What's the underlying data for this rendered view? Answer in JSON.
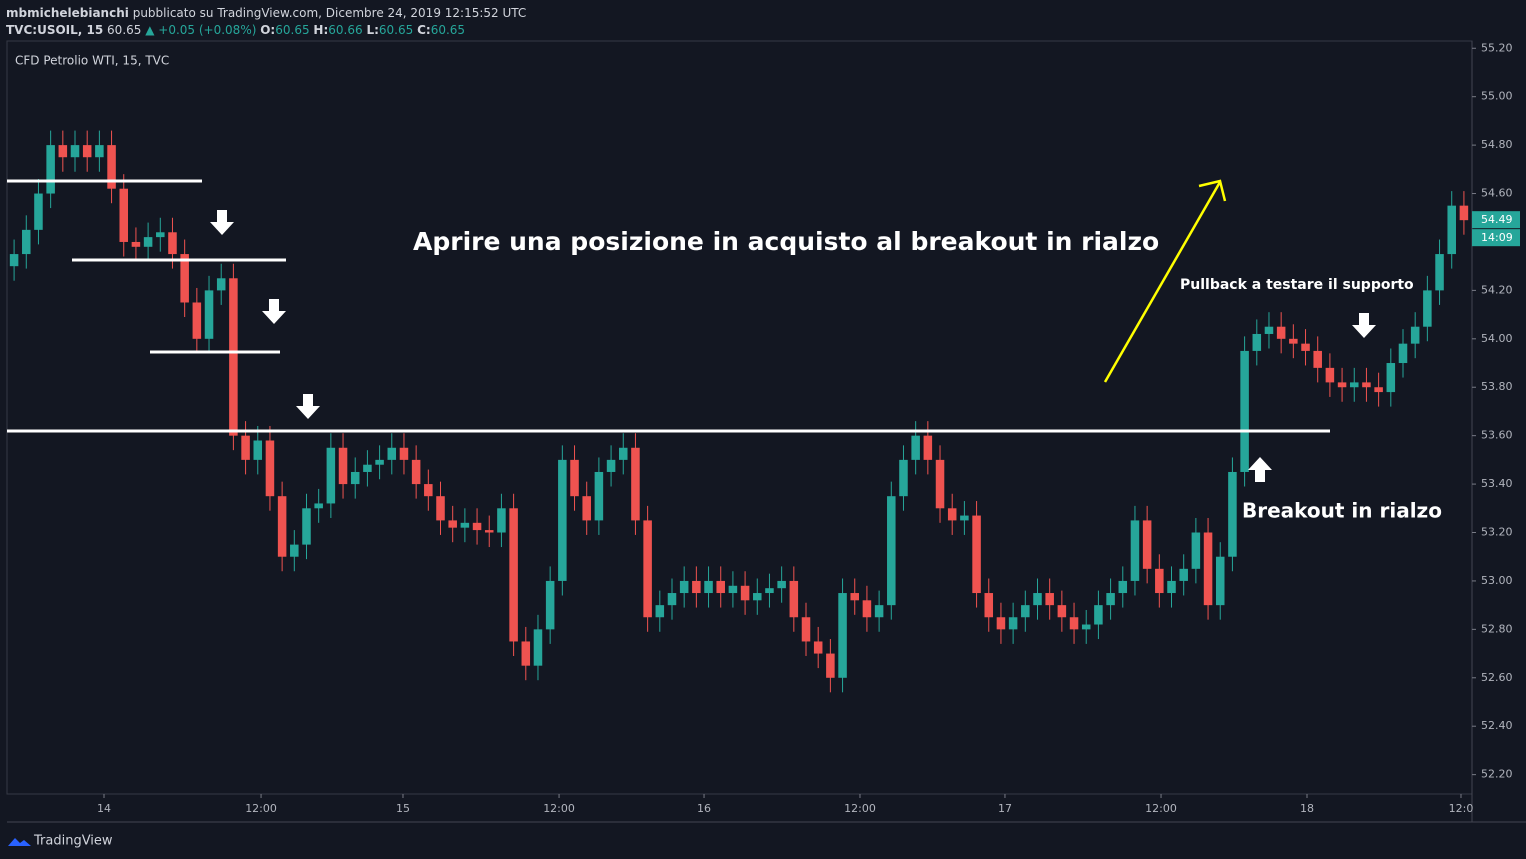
{
  "header": {
    "author": "mbmichelebianchi",
    "published": "pubblicato su TradingView.com, Dicembre 24, 2019 12:15:52 UTC",
    "symbol": "TVC:USOIL, 15",
    "price": "60.65",
    "change": "▲ +0.05 (+0.08%)",
    "o_label": "O:",
    "o": "60.65",
    "h_label": "H:",
    "h": "60.66",
    "l_label": "L:",
    "l": "60.65",
    "c_label": "C:",
    "c": "60.65"
  },
  "footer": {
    "brand": "TradingView"
  },
  "chart_data": {
    "type": "candlestick",
    "title": "CFD Petrolio WTI, 15, TVC",
    "annotations": [
      "Aprire una posizione in acquisto al breakout in rialzo",
      "Pullback a testare il supporto",
      "Breakout in rialzo"
    ],
    "countdown": "14:09",
    "up_color": "#26a69a",
    "down_color": "#ef5350",
    "xlim": [
      -0.5,
      119.5
    ],
    "ylim": [
      52.12,
      55.23
    ],
    "xticks": [
      {
        "value": 7.38,
        "label": "14"
      },
      {
        "value": 20.27,
        "label": "12:00"
      },
      {
        "value": 31.92,
        "label": "15"
      },
      {
        "value": 44.73,
        "label": "12:00"
      },
      {
        "value": 56.63,
        "label": "16"
      },
      {
        "value": 69.43,
        "label": "12:00"
      },
      {
        "value": 81.33,
        "label": "17"
      },
      {
        "value": 94.14,
        "label": "12:00"
      },
      {
        "value": 106.12,
        "label": "18"
      },
      {
        "value": 118.76,
        "label": "12:0"
      }
    ],
    "yticks": [
      {
        "value": 52.2,
        "label": "52.20"
      },
      {
        "value": 52.4,
        "label": "52.40"
      },
      {
        "value": 52.6,
        "label": "52.60"
      },
      {
        "value": 52.8,
        "label": "52.80"
      },
      {
        "value": 53.0,
        "label": "53.00"
      },
      {
        "value": 53.2,
        "label": "53.20"
      },
      {
        "value": 53.4,
        "label": "53.40"
      },
      {
        "value": 53.6,
        "label": "53.60"
      },
      {
        "value": 53.8,
        "label": "53.80"
      },
      {
        "value": 54.0,
        "label": "54.00"
      },
      {
        "value": 54.2,
        "label": "54.20"
      },
      {
        "value": 54.4,
        "label": "54.40"
      },
      {
        "value": 54.6,
        "label": "54.60"
      },
      {
        "value": 54.8,
        "label": "54.80"
      },
      {
        "value": 55.0,
        "label": "55.00"
      },
      {
        "value": 55.2,
        "label": "55.20"
      }
    ],
    "open": [
      54.3,
      54.35,
      54.45,
      54.6,
      54.8,
      54.75,
      54.8,
      54.75,
      54.8,
      54.62,
      54.4,
      54.38,
      54.42,
      54.44,
      54.35,
      54.15,
      54.0,
      54.2,
      54.25,
      53.6,
      53.5,
      53.58,
      53.35,
      53.1,
      53.15,
      53.3,
      53.32,
      53.55,
      53.4,
      53.45,
      53.48,
      53.5,
      53.55,
      53.5,
      53.4,
      53.35,
      53.25,
      53.22,
      53.24,
      53.21,
      53.2,
      53.3,
      52.75,
      52.65,
      52.8,
      53.0,
      53.5,
      53.35,
      53.25,
      53.45,
      53.5,
      53.55,
      53.25,
      52.85,
      52.9,
      52.95,
      53.0,
      52.95,
      53.0,
      52.95,
      52.98,
      52.92,
      52.95,
      52.97,
      53.0,
      52.85,
      52.75,
      52.7,
      52.6,
      52.95,
      52.92,
      52.85,
      52.9,
      53.35,
      53.5,
      53.6,
      53.5,
      53.3,
      53.25,
      53.27,
      52.95,
      52.85,
      52.8,
      52.85,
      52.9,
      52.95,
      52.9,
      52.85,
      52.8,
      52.82,
      52.9,
      52.95,
      53.0,
      53.25,
      53.05,
      52.95,
      53.0,
      53.05,
      53.2,
      52.9,
      53.1,
      53.45,
      53.95,
      54.02,
      54.05,
      54.0,
      53.98,
      53.95,
      53.88,
      53.82,
      53.8,
      53.82,
      53.8,
      53.78,
      53.9,
      53.98,
      54.05,
      54.2,
      54.35,
      54.55
    ],
    "high": [
      54.41,
      54.51,
      54.66,
      54.86,
      54.86,
      54.86,
      54.86,
      54.86,
      54.86,
      54.68,
      54.46,
      54.48,
      54.5,
      54.5,
      54.41,
      54.21,
      54.26,
      54.31,
      54.31,
      53.66,
      53.64,
      53.64,
      53.41,
      53.21,
      53.36,
      53.38,
      53.61,
      53.61,
      53.51,
      53.54,
      53.56,
      53.61,
      53.61,
      53.56,
      53.46,
      53.41,
      53.31,
      53.3,
      53.3,
      53.27,
      53.36,
      53.36,
      52.81,
      52.86,
      53.06,
      53.56,
      53.56,
      53.41,
      53.51,
      53.56,
      53.61,
      53.61,
      53.31,
      52.96,
      53.01,
      53.06,
      53.06,
      53.06,
      53.06,
      53.04,
      53.04,
      53.01,
      53.03,
      53.06,
      53.06,
      52.91,
      52.81,
      52.76,
      53.01,
      53.01,
      52.98,
      52.96,
      53.41,
      53.56,
      53.66,
      53.66,
      53.56,
      53.36,
      53.33,
      53.33,
      53.01,
      52.91,
      52.91,
      52.96,
      53.01,
      53.01,
      52.96,
      52.91,
      52.88,
      52.96,
      53.01,
      53.06,
      53.31,
      53.31,
      53.11,
      53.06,
      53.11,
      53.26,
      53.26,
      53.16,
      53.51,
      54.01,
      54.08,
      54.11,
      54.11,
      54.06,
      54.04,
      54.01,
      53.94,
      53.88,
      53.88,
      53.88,
      53.86,
      53.96,
      54.04,
      54.11,
      54.26,
      54.41,
      54.61,
      54.61
    ],
    "low": [
      54.24,
      54.29,
      54.39,
      54.54,
      54.69,
      54.69,
      54.69,
      54.69,
      54.56,
      54.34,
      54.32,
      54.32,
      54.36,
      54.29,
      54.09,
      53.94,
      53.94,
      54.14,
      53.54,
      53.44,
      53.44,
      53.29,
      53.04,
      53.04,
      53.09,
      53.24,
      53.26,
      53.34,
      53.34,
      53.39,
      53.42,
      53.44,
      53.44,
      53.34,
      53.29,
      53.19,
      53.16,
      53.16,
      53.15,
      53.14,
      53.14,
      52.69,
      52.59,
      52.59,
      52.74,
      52.94,
      53.29,
      53.19,
      53.19,
      53.39,
      53.44,
      53.19,
      52.79,
      52.79,
      52.84,
      52.89,
      52.89,
      52.89,
      52.89,
      52.89,
      52.86,
      52.86,
      52.89,
      52.91,
      52.79,
      52.69,
      52.64,
      52.54,
      52.54,
      52.86,
      52.79,
      52.79,
      52.84,
      53.29,
      53.44,
      53.44,
      53.24,
      53.19,
      53.19,
      52.89,
      52.79,
      52.74,
      52.74,
      52.79,
      52.84,
      52.84,
      52.79,
      52.74,
      52.74,
      52.76,
      52.84,
      52.89,
      52.94,
      52.99,
      52.89,
      52.89,
      52.94,
      52.99,
      52.84,
      52.84,
      53.04,
      53.39,
      53.89,
      53.96,
      53.94,
      53.92,
      53.89,
      53.82,
      53.76,
      53.74,
      53.74,
      53.74,
      53.72,
      53.72,
      53.84,
      53.92,
      53.99,
      54.14,
      54.29,
      54.43
    ],
    "close": [
      54.35,
      54.45,
      54.6,
      54.8,
      54.75,
      54.8,
      54.75,
      54.8,
      54.62,
      54.4,
      54.38,
      54.42,
      54.44,
      54.35,
      54.15,
      54.0,
      54.2,
      54.25,
      53.6,
      53.5,
      53.58,
      53.35,
      53.1,
      53.15,
      53.3,
      53.32,
      53.55,
      53.4,
      53.45,
      53.48,
      53.5,
      53.55,
      53.5,
      53.4,
      53.35,
      53.25,
      53.22,
      53.24,
      53.21,
      53.2,
      53.3,
      52.75,
      52.65,
      52.8,
      53.0,
      53.5,
      53.35,
      53.25,
      53.45,
      53.5,
      53.55,
      53.25,
      52.85,
      52.9,
      52.95,
      53.0,
      52.95,
      53.0,
      52.95,
      52.98,
      52.92,
      52.95,
      52.97,
      53.0,
      52.85,
      52.75,
      52.7,
      52.6,
      52.95,
      52.92,
      52.85,
      52.9,
      53.35,
      53.5,
      53.6,
      53.5,
      53.3,
      53.25,
      53.27,
      52.95,
      52.85,
      52.8,
      52.85,
      52.9,
      52.95,
      52.9,
      52.85,
      52.8,
      52.82,
      52.9,
      52.95,
      53.0,
      53.25,
      53.05,
      52.95,
      53.0,
      53.05,
      53.2,
      52.9,
      53.1,
      53.45,
      53.95,
      54.02,
      54.05,
      54.0,
      53.98,
      53.95,
      53.88,
      53.82,
      53.8,
      53.82,
      53.8,
      53.78,
      53.9,
      53.98,
      54.05,
      54.2,
      54.35,
      54.55,
      54.49
    ]
  }
}
